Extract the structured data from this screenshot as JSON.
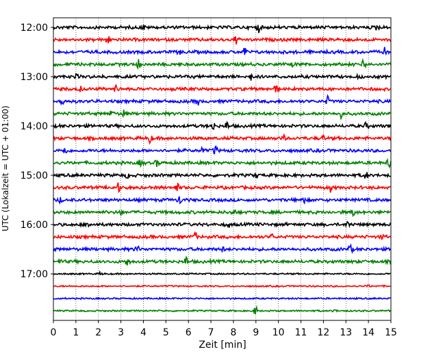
{
  "chart_data": {
    "type": "line",
    "subtype": "helicorder",
    "xlabel": "Zeit  [min]",
    "ylabel": "UTC (Lokalzeit = UTC + 01:00)",
    "xlim": [
      0,
      15
    ],
    "x_ticks": [
      0,
      1,
      2,
      3,
      4,
      5,
      6,
      7,
      8,
      9,
      10,
      11,
      12,
      13,
      14,
      15
    ],
    "grid": "vertical dotted",
    "start_time": "12:00",
    "minutes_per_row": 15,
    "color_cycle": [
      "#000000",
      "#ff0000",
      "#0000ff",
      "#008000"
    ],
    "time_tick_labels": [
      "12:00",
      "13:00",
      "14:00",
      "15:00",
      "16:00",
      "17:00"
    ],
    "rows": [
      {
        "time": "12:00",
        "color": "#000000",
        "spikes": [
          {
            "t": 9.1,
            "a": 1.0
          },
          {
            "t": 4.0,
            "a": 0.5
          },
          {
            "t": 14.4,
            "a": 0.6
          }
        ]
      },
      {
        "time": "12:15",
        "color": "#ff0000",
        "spikes": [
          {
            "t": 2.4,
            "a": 1.0
          },
          {
            "t": 8.1,
            "a": 1.0
          },
          {
            "t": 12.7,
            "a": 0.5
          }
        ]
      },
      {
        "time": "12:30",
        "color": "#0000ff",
        "spikes": [
          {
            "t": 8.5,
            "a": 0.9
          },
          {
            "t": 14.7,
            "a": 0.8
          },
          {
            "t": 5.6,
            "a": 0.4
          }
        ]
      },
      {
        "time": "12:45",
        "color": "#008000",
        "spikes": [
          {
            "t": 3.8,
            "a": 0.9
          },
          {
            "t": 13.8,
            "a": 0.9
          },
          {
            "t": 10.7,
            "a": 0.4
          }
        ]
      },
      {
        "time": "13:00",
        "color": "#000000",
        "spikes": [
          {
            "t": 8.8,
            "a": 0.7
          },
          {
            "t": 1.0,
            "a": 0.4
          },
          {
            "t": 13.6,
            "a": 0.4
          }
        ]
      },
      {
        "time": "13:15",
        "color": "#ff0000",
        "spikes": [
          {
            "t": 2.8,
            "a": 0.8
          },
          {
            "t": 9.9,
            "a": 0.8
          },
          {
            "t": 1.2,
            "a": 0.5
          }
        ]
      },
      {
        "time": "13:30",
        "color": "#0000ff",
        "spikes": [
          {
            "t": 0.4,
            "a": 0.9
          },
          {
            "t": 6.4,
            "a": 0.9
          },
          {
            "t": 12.2,
            "a": 0.9
          }
        ]
      },
      {
        "time": "13:45",
        "color": "#008000",
        "spikes": [
          {
            "t": 2.6,
            "a": 0.7
          },
          {
            "t": 3.1,
            "a": 0.7
          },
          {
            "t": 12.8,
            "a": 0.8
          }
        ]
      },
      {
        "time": "14:00",
        "color": "#000000",
        "spikes": [
          {
            "t": 7.1,
            "a": 0.8
          },
          {
            "t": 7.7,
            "a": 0.8
          },
          {
            "t": 13.9,
            "a": 0.6
          }
        ]
      },
      {
        "time": "14:15",
        "color": "#ff0000",
        "spikes": [
          {
            "t": 4.3,
            "a": 0.9
          },
          {
            "t": 10.2,
            "a": 0.9
          },
          {
            "t": 12.0,
            "a": 0.5
          }
        ]
      },
      {
        "time": "14:30",
        "color": "#0000ff",
        "spikes": [
          {
            "t": 0.5,
            "a": 0.9
          },
          {
            "t": 7.2,
            "a": 1.0
          },
          {
            "t": 6.6,
            "a": 0.5
          }
        ]
      },
      {
        "time": "14:45",
        "color": "#008000",
        "spikes": [
          {
            "t": 3.9,
            "a": 0.7
          },
          {
            "t": 4.6,
            "a": 0.6
          },
          {
            "t": 14.9,
            "a": 0.9
          }
        ]
      },
      {
        "time": "15:00",
        "color": "#000000",
        "spikes": [
          {
            "t": 13.9,
            "a": 0.8
          },
          {
            "t": 3.3,
            "a": 0.5
          },
          {
            "t": 9.0,
            "a": 0.4
          }
        ]
      },
      {
        "time": "15:15",
        "color": "#ff0000",
        "spikes": [
          {
            "t": 2.9,
            "a": 0.9
          },
          {
            "t": 5.5,
            "a": 0.8
          },
          {
            "t": 12.3,
            "a": 0.8
          }
        ]
      },
      {
        "time": "15:30",
        "color": "#0000ff",
        "spikes": [
          {
            "t": 5.6,
            "a": 0.9
          },
          {
            "t": 11.1,
            "a": 0.8
          },
          {
            "t": 0.3,
            "a": 0.5
          }
        ]
      },
      {
        "time": "15:45",
        "color": "#008000",
        "spikes": [
          {
            "t": 8.0,
            "a": 0.7
          },
          {
            "t": 13.3,
            "a": 0.7
          },
          {
            "t": 3.0,
            "a": 0.5
          }
        ]
      },
      {
        "time": "16:00",
        "color": "#000000",
        "spikes": [
          {
            "t": 1.5,
            "a": 0.9
          },
          {
            "t": 13.1,
            "a": 0.8
          },
          {
            "t": 7.8,
            "a": 0.4
          }
        ]
      },
      {
        "time": "16:15",
        "color": "#ff0000",
        "spikes": [
          {
            "t": 6.3,
            "a": 0.9
          },
          {
            "t": 9.7,
            "a": 0.5
          },
          {
            "t": 14.6,
            "a": 0.4
          }
        ]
      },
      {
        "time": "16:30",
        "color": "#0000ff",
        "spikes": [
          {
            "t": 3.7,
            "a": 0.9
          },
          {
            "t": 13.2,
            "a": 0.9
          },
          {
            "t": 7.5,
            "a": 0.4
          }
        ]
      },
      {
        "time": "16:45",
        "color": "#008000",
        "spikes": [
          {
            "t": 3.3,
            "a": 1.0
          },
          {
            "t": 5.9,
            "a": 0.9
          },
          {
            "t": 0.3,
            "a": 0.5
          }
        ]
      },
      {
        "time": "17:00",
        "color": "#000000",
        "spikes": [
          {
            "t": 2.1,
            "a": 0.3
          }
        ]
      },
      {
        "time": "17:15",
        "color": "#ff0000",
        "spikes": [
          {
            "t": 14.0,
            "a": 0.2
          }
        ]
      },
      {
        "time": "17:30",
        "color": "#0000ff",
        "spikes": []
      },
      {
        "time": "17:45",
        "color": "#008000",
        "spikes": [
          {
            "t": 9.0,
            "a": 0.9
          },
          {
            "t": 12.5,
            "a": 0.3
          }
        ]
      }
    ]
  }
}
